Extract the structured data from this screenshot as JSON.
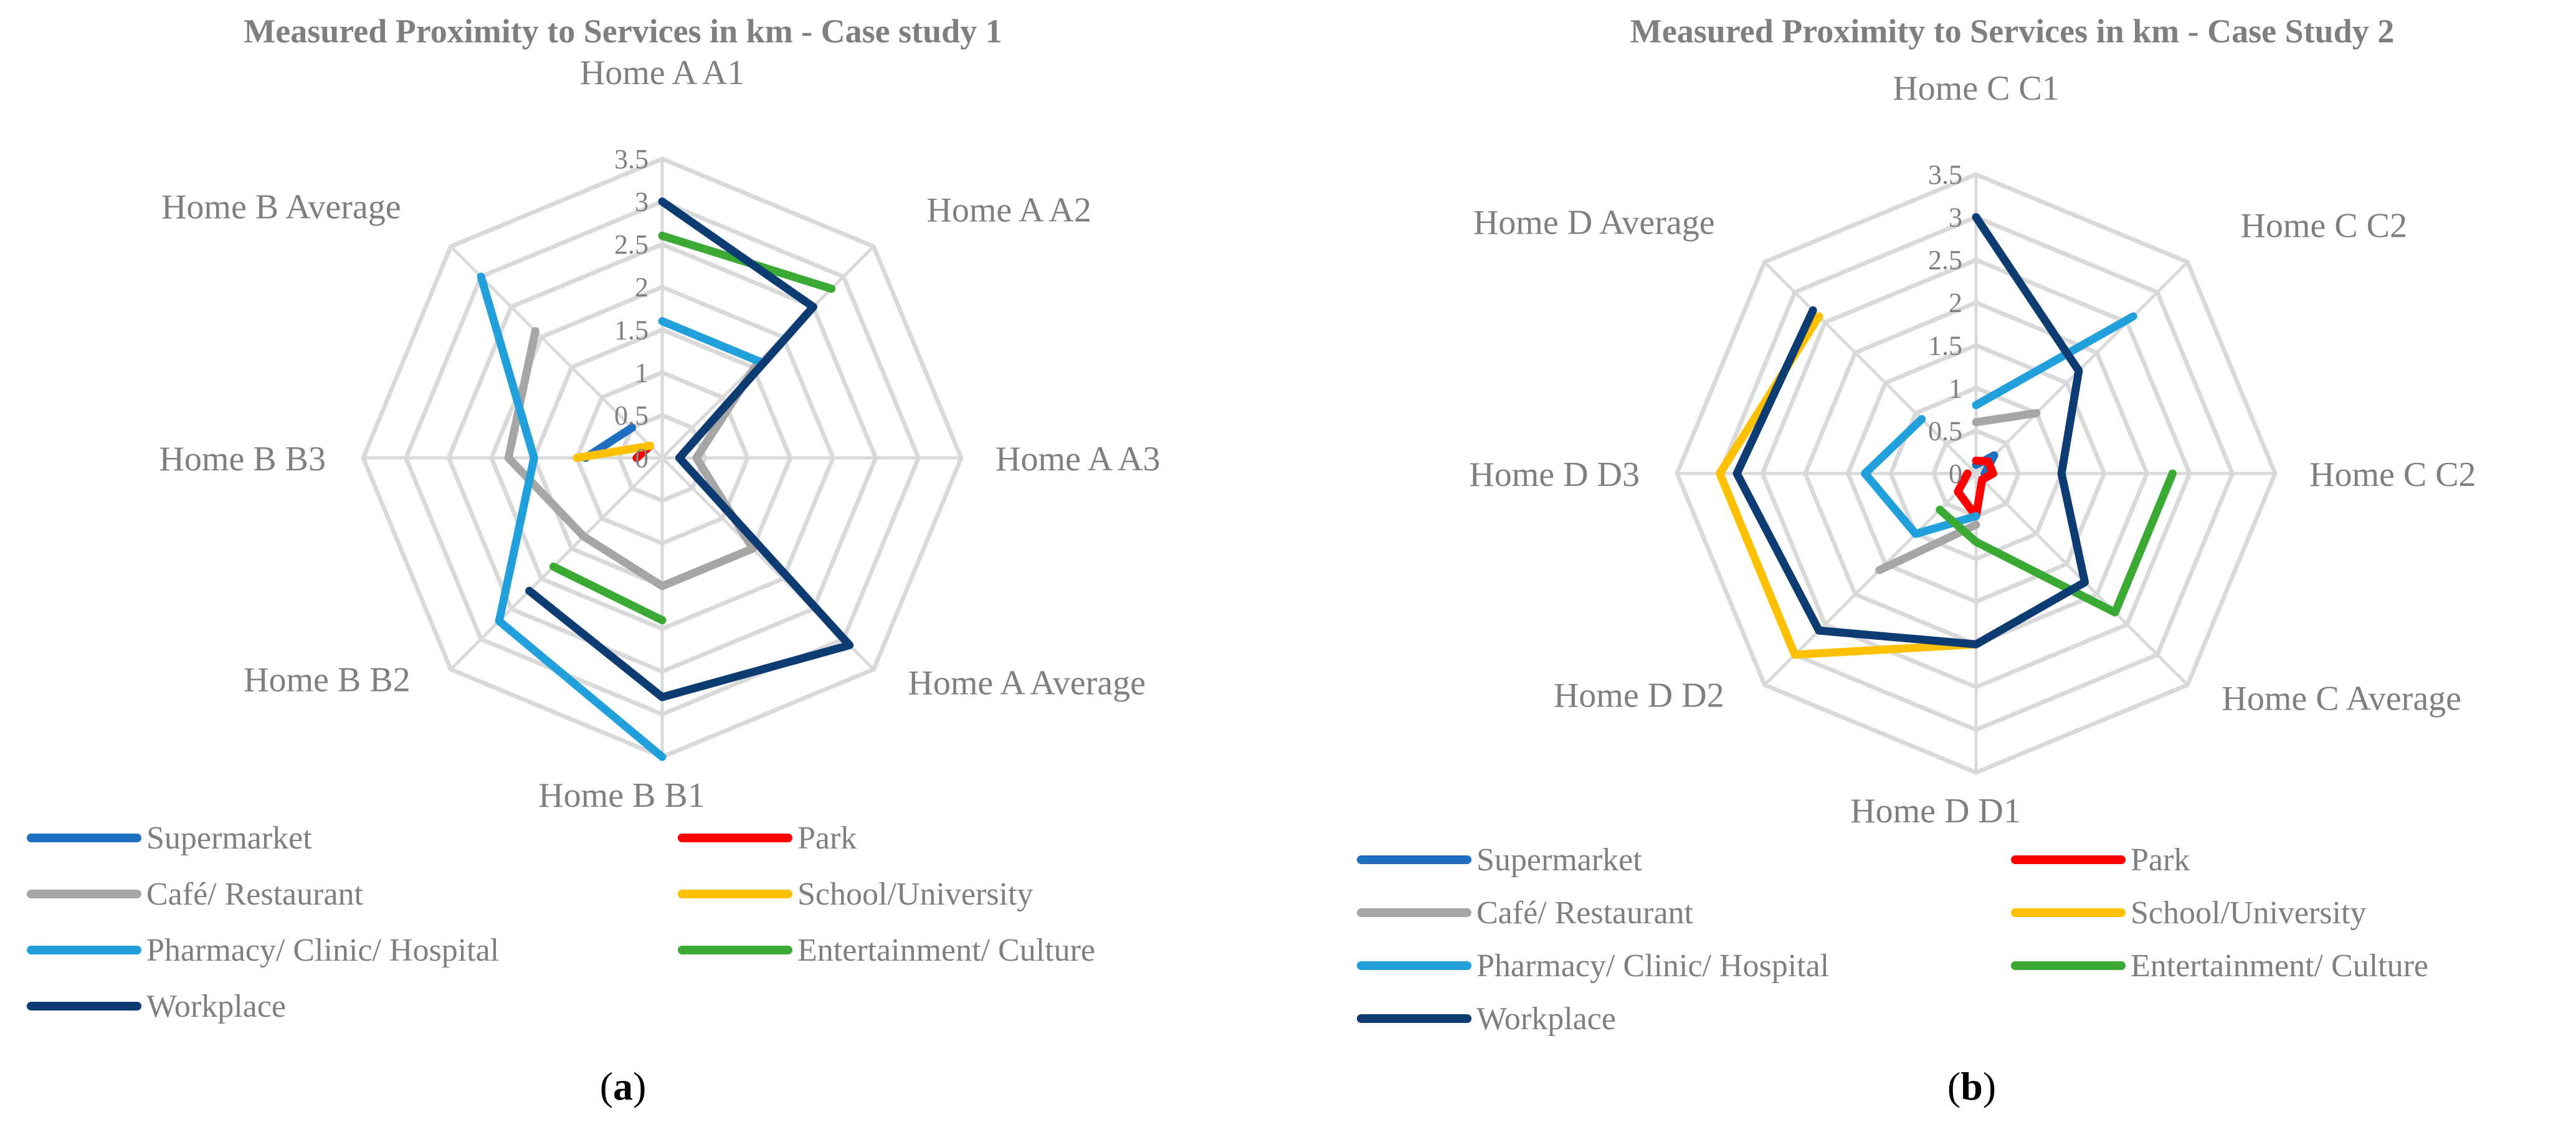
{
  "chart_data": [
    {
      "type": "radar",
      "title": "Measured Proximity to Services in km - Case study 1",
      "caption_open": "(",
      "caption_letter": "a",
      "caption_close": ")",
      "categories": [
        "Home A A1",
        "Home A A2",
        "Home A A3",
        "Home A Average",
        "Home B B1",
        "Home B B2",
        "Home B B3",
        "Home B Average"
      ],
      "r_ticks": [
        "0",
        "0.5",
        "1",
        "1.5",
        "2",
        "2.5",
        "3",
        "3.5"
      ],
      "r_range": [
        0,
        3.5
      ],
      "series": [
        {
          "name": "Supermarket",
          "color": "#1f6fc1",
          "values": [
            0.5,
            null,
            0.9,
            null,
            null,
            null,
            0.9,
            0.5
          ]
        },
        {
          "name": "Park",
          "color": "#ff0000",
          "values": [
            0.3,
            null,
            null,
            null,
            null,
            null,
            0.3,
            0.2
          ]
        },
        {
          "name": "Café/ Restaurant",
          "color": "#a6a6a6",
          "values": [
            null,
            1.6,
            0.4,
            1.5,
            1.5,
            1.3,
            1.8,
            2.1
          ]
        },
        {
          "name": "School/University",
          "color": "#ffc000",
          "values": [
            1.6,
            null,
            null,
            null,
            null,
            null,
            1.0,
            0.2
          ]
        },
        {
          "name": "Pharmacy/ Clinic/ Hospital",
          "color": "#21a0db",
          "values": [
            1.6,
            1.6,
            null,
            null,
            3.5,
            2.7,
            1.5,
            3.0
          ]
        },
        {
          "name": "Entertainment/ Culture",
          "color": "#3aaa35",
          "values": [
            2.6,
            2.8,
            null,
            null,
            1.9,
            1.8,
            null,
            2.5
          ]
        },
        {
          "name": "Workplace",
          "color": "#0d3c73",
          "values": [
            3.0,
            2.5,
            0.2,
            3.1,
            2.8,
            2.2,
            null,
            3.0
          ]
        }
      ]
    },
    {
      "type": "radar",
      "title": "Measured Proximity to Services in km - Case Study 2",
      "caption_open": "(",
      "caption_letter": "b",
      "caption_close": ")",
      "categories": [
        "Home C C1",
        "Home C C2",
        "Home C C2",
        "Home C Average",
        "Home D D1",
        "Home D D2",
        "Home D D3",
        "Home D Average"
      ],
      "r_ticks": [
        "0",
        "0.5",
        "1",
        "1.5",
        "2",
        "2.5",
        "3",
        "3.5"
      ],
      "r_range": [
        0,
        3.5
      ],
      "series": [
        {
          "name": "Supermarket",
          "color": "#1f6fc1",
          "values": [
            0.1,
            0.3,
            0.1,
            null,
            null,
            null,
            null,
            null
          ]
        },
        {
          "name": "Park",
          "color": "#ff0000",
          "values": [
            0.15,
            0.2,
            0.2,
            0.1,
            0.5,
            0.3,
            0.1,
            null
          ]
        },
        {
          "name": "Café/ Restaurant",
          "color": "#a6a6a6",
          "values": [
            0.6,
            1.0,
            null,
            null,
            0.6,
            1.6,
            null,
            1.4
          ]
        },
        {
          "name": "School/University",
          "color": "#ffc000",
          "values": [
            0.2,
            null,
            1.1,
            null,
            2.0,
            3.0,
            3.0,
            2.6
          ]
        },
        {
          "name": "Pharmacy/ Clinic/ Hospital",
          "color": "#21a0db",
          "values": [
            0.8,
            2.6,
            null,
            null,
            0.5,
            1.0,
            1.3,
            0.9
          ]
        },
        {
          "name": "Entertainment/ Culture",
          "color": "#3aaa35",
          "values": [
            1.9,
            null,
            2.3,
            2.3,
            0.8,
            0.6,
            null,
            1.8
          ]
        },
        {
          "name": "Workplace",
          "color": "#0d3c73",
          "values": [
            3.0,
            1.7,
            1.0,
            1.8,
            2.0,
            2.6,
            2.8,
            2.7
          ]
        }
      ]
    }
  ]
}
